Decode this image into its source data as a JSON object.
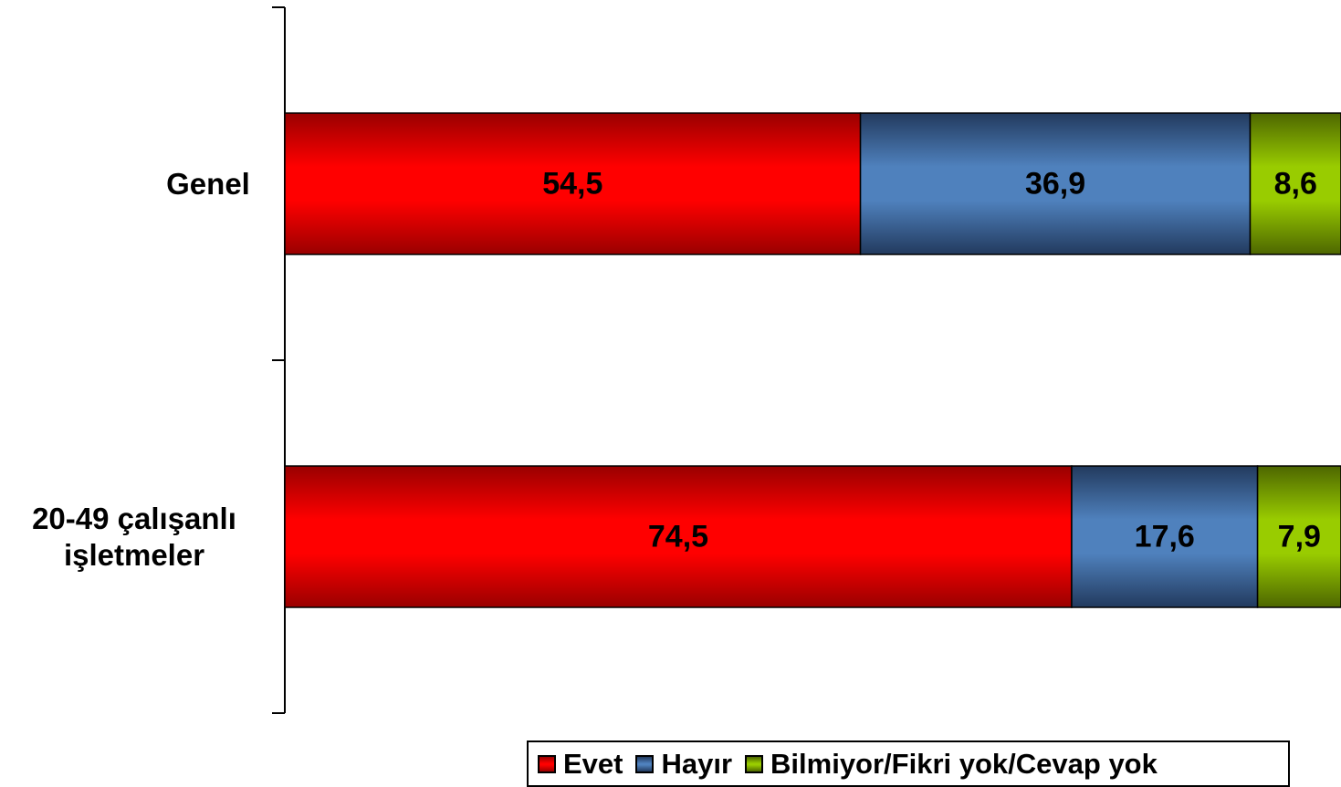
{
  "chart_data": {
    "type": "bar",
    "orientation": "horizontal",
    "stacked": true,
    "categories": [
      "Genel",
      "20-49 çalışanlı işletmeler"
    ],
    "category_lines": [
      [
        "Genel"
      ],
      [
        "20-49 çalışanlı",
        "işletmeler"
      ]
    ],
    "series": [
      {
        "name": "Evet",
        "values": [
          54.5,
          74.5
        ],
        "labels": [
          "54,5",
          "74,5"
        ],
        "color": "#ff0000",
        "color_dark": "#990000"
      },
      {
        "name": "Hayır",
        "values": [
          36.9,
          17.6
        ],
        "labels": [
          "36,9",
          "17,6"
        ],
        "color": "#4f81bd",
        "color_dark": "#223a5e"
      },
      {
        "name": "Bilmiyor/Fikri yok/Cevap yok",
        "values": [
          8.6,
          7.9
        ],
        "labels": [
          "8,6",
          "7,9"
        ],
        "color": "#99cc00",
        "color_dark": "#4d6600"
      }
    ],
    "xlim": [
      0,
      100
    ],
    "grid": false,
    "legend_position": "bottom-right",
    "title": "",
    "xlabel": "",
    "ylabel": ""
  }
}
